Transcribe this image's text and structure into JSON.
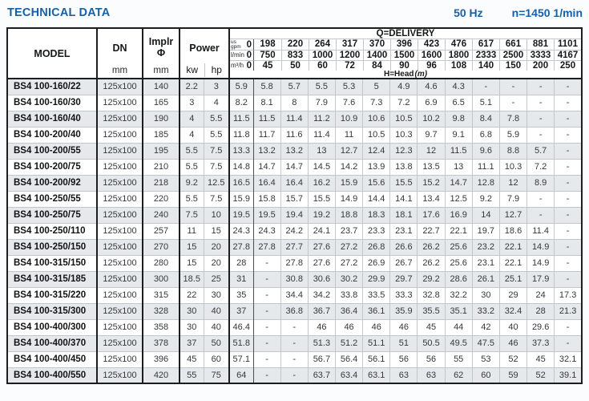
{
  "title": "TECHNICAL DATA",
  "frequency": "50 Hz",
  "speed": "n=1450 1/min",
  "colors": {
    "accent": "#1660a8",
    "row_stripe": "#e6e9ec"
  },
  "table": {
    "col_headers": {
      "model": "MODEL",
      "dn": "DN",
      "dn_unit": "mm",
      "implr_line1": "Implr",
      "implr_line2": "Φ",
      "implr_unit": "mm",
      "power": "Power",
      "power_kw": "kw",
      "power_hp": "hp",
      "delivery_title": "Q=DELIVERY",
      "unit_gpm_top": "us",
      "unit_gpm": "gpm",
      "unit_lmin": "l/min",
      "unit_m3h": "m³/h",
      "head_label": "H=Head",
      "head_unit": "(m)"
    },
    "delivery_cols": {
      "gpm": [
        "0",
        "198",
        "220",
        "264",
        "317",
        "370",
        "396",
        "423",
        "476",
        "617",
        "661",
        "881",
        "1101"
      ],
      "lmin": [
        "0",
        "750",
        "833",
        "1000",
        "1200",
        "1400",
        "1500",
        "1600",
        "1800",
        "2333",
        "2500",
        "3333",
        "4167"
      ],
      "m3h": [
        "0",
        "45",
        "50",
        "60",
        "72",
        "84",
        "90",
        "96",
        "108",
        "140",
        "150",
        "200",
        "250"
      ]
    },
    "rows": [
      {
        "model": "BS4 100-160/22",
        "dn": "125x100",
        "implr": "140",
        "kw": "2.2",
        "hp": "3",
        "head": [
          "5.9",
          "5.8",
          "5.7",
          "5.5",
          "5.3",
          "5",
          "4.9",
          "4.6",
          "4.3",
          "-",
          "-",
          "-",
          "-"
        ]
      },
      {
        "model": "BS4 100-160/30",
        "dn": "125x100",
        "implr": "165",
        "kw": "3",
        "hp": "4",
        "head": [
          "8.2",
          "8.1",
          "8",
          "7.9",
          "7.6",
          "7.3",
          "7.2",
          "6.9",
          "6.5",
          "5.1",
          "-",
          "-",
          "-"
        ]
      },
      {
        "model": "BS4 100-160/40",
        "dn": "125x100",
        "implr": "190",
        "kw": "4",
        "hp": "5.5",
        "head": [
          "11.5",
          "11.5",
          "11.4",
          "11.2",
          "10.9",
          "10.6",
          "10.5",
          "10.2",
          "9.8",
          "8.4",
          "7.8",
          "-",
          "-"
        ]
      },
      {
        "model": "BS4 100-200/40",
        "dn": "125x100",
        "implr": "185",
        "kw": "4",
        "hp": "5.5",
        "head": [
          "11.8",
          "11.7",
          "11.6",
          "11.4",
          "11",
          "10.5",
          "10.3",
          "9.7",
          "9.1",
          "6.8",
          "5.9",
          "-",
          "-"
        ]
      },
      {
        "model": "BS4 100-200/55",
        "dn": "125x100",
        "implr": "195",
        "kw": "5.5",
        "hp": "7.5",
        "head": [
          "13.3",
          "13.2",
          "13.2",
          "13",
          "12.7",
          "12.4",
          "12.3",
          "12",
          "11.5",
          "9.6",
          "8.8",
          "5.7",
          "-"
        ]
      },
      {
        "model": "BS4 100-200/75",
        "dn": "125x100",
        "implr": "210",
        "kw": "5.5",
        "hp": "7.5",
        "head": [
          "14.8",
          "14.7",
          "14.7",
          "14.5",
          "14.2",
          "13.9",
          "13.8",
          "13.5",
          "13",
          "11.1",
          "10.3",
          "7.2",
          "-"
        ]
      },
      {
        "model": "BS4 100-200/92",
        "dn": "125x100",
        "implr": "218",
        "kw": "9.2",
        "hp": "12.5",
        "head": [
          "16.5",
          "16.4",
          "16.4",
          "16.2",
          "15.9",
          "15.6",
          "15.5",
          "15.2",
          "14.7",
          "12.8",
          "12",
          "8.9",
          "-"
        ]
      },
      {
        "model": "BS4 100-250/55",
        "dn": "125x100",
        "implr": "220",
        "kw": "5.5",
        "hp": "7.5",
        "head": [
          "15.9",
          "15.8",
          "15.7",
          "15.5",
          "14.9",
          "14.4",
          "14.1",
          "13.4",
          "12.5",
          "9.2",
          "7.9",
          "-",
          "-"
        ]
      },
      {
        "model": "BS4 100-250/75",
        "dn": "125x100",
        "implr": "240",
        "kw": "7.5",
        "hp": "10",
        "head": [
          "19.5",
          "19.5",
          "19.4",
          "19.2",
          "18.8",
          "18.3",
          "18.1",
          "17.6",
          "16.9",
          "14",
          "12.7",
          "-",
          "-"
        ]
      },
      {
        "model": "BS4 100-250/110",
        "dn": "125x100",
        "implr": "257",
        "kw": "11",
        "hp": "15",
        "head": [
          "24.3",
          "24.3",
          "24.2",
          "24.1",
          "23.7",
          "23.3",
          "23.1",
          "22.7",
          "22.1",
          "19.7",
          "18.6",
          "11.4",
          "-"
        ]
      },
      {
        "model": "BS4 100-250/150",
        "dn": "125x100",
        "implr": "270",
        "kw": "15",
        "hp": "20",
        "head": [
          "27.8",
          "27.8",
          "27.7",
          "27.6",
          "27.2",
          "26.8",
          "26.6",
          "26.2",
          "25.6",
          "23.2",
          "22.1",
          "14.9",
          "-"
        ]
      },
      {
        "model": "BS4 100-315/150",
        "dn": "125x100",
        "implr": "280",
        "kw": "15",
        "hp": "20",
        "head": [
          "28",
          "-",
          "27.8",
          "27.6",
          "27.2",
          "26.9",
          "26.7",
          "26.2",
          "25.6",
          "23.1",
          "22.1",
          "14.9",
          "-"
        ]
      },
      {
        "model": "BS4 100-315/185",
        "dn": "125x100",
        "implr": "300",
        "kw": "18.5",
        "hp": "25",
        "head": [
          "31",
          "-",
          "30.8",
          "30.6",
          "30.2",
          "29.9",
          "29.7",
          "29.2",
          "28.6",
          "26.1",
          "25.1",
          "17.9",
          "-"
        ]
      },
      {
        "model": "BS4 100-315/220",
        "dn": "125x100",
        "implr": "315",
        "kw": "22",
        "hp": "30",
        "head": [
          "35",
          "-",
          "34.4",
          "34.2",
          "33.8",
          "33.5",
          "33.3",
          "32.8",
          "32.2",
          "30",
          "29",
          "24",
          "17.3"
        ]
      },
      {
        "model": "BS4 100-315/300",
        "dn": "125x100",
        "implr": "328",
        "kw": "30",
        "hp": "40",
        "head": [
          "37",
          "-",
          "36.8",
          "36.7",
          "36.4",
          "36.1",
          "35.9",
          "35.5",
          "35.1",
          "33.2",
          "32.4",
          "28",
          "21.3"
        ]
      },
      {
        "model": "BS4 100-400/300",
        "dn": "125x100",
        "implr": "358",
        "kw": "30",
        "hp": "40",
        "head": [
          "46.4",
          "-",
          "-",
          "46",
          "46",
          "46",
          "46",
          "45",
          "44",
          "42",
          "40",
          "29.6",
          "-"
        ]
      },
      {
        "model": "BS4 100-400/370",
        "dn": "125x100",
        "implr": "378",
        "kw": "37",
        "hp": "50",
        "head": [
          "51.8",
          "-",
          "-",
          "51.3",
          "51.2",
          "51.1",
          "51",
          "50.5",
          "49.5",
          "47.5",
          "46",
          "37.3",
          "-"
        ]
      },
      {
        "model": "BS4 100-400/450",
        "dn": "125x100",
        "implr": "396",
        "kw": "45",
        "hp": "60",
        "head": [
          "57.1",
          "-",
          "-",
          "56.7",
          "56.4",
          "56.1",
          "56",
          "56",
          "55",
          "53",
          "52",
          "45",
          "32.1"
        ]
      },
      {
        "model": "BS4 100-400/550",
        "dn": "125x100",
        "implr": "420",
        "kw": "55",
        "hp": "75",
        "head": [
          "64",
          "-",
          "-",
          "63.7",
          "63.4",
          "63.1",
          "63",
          "63",
          "62",
          "60",
          "59",
          "52",
          "39.1"
        ]
      }
    ]
  }
}
